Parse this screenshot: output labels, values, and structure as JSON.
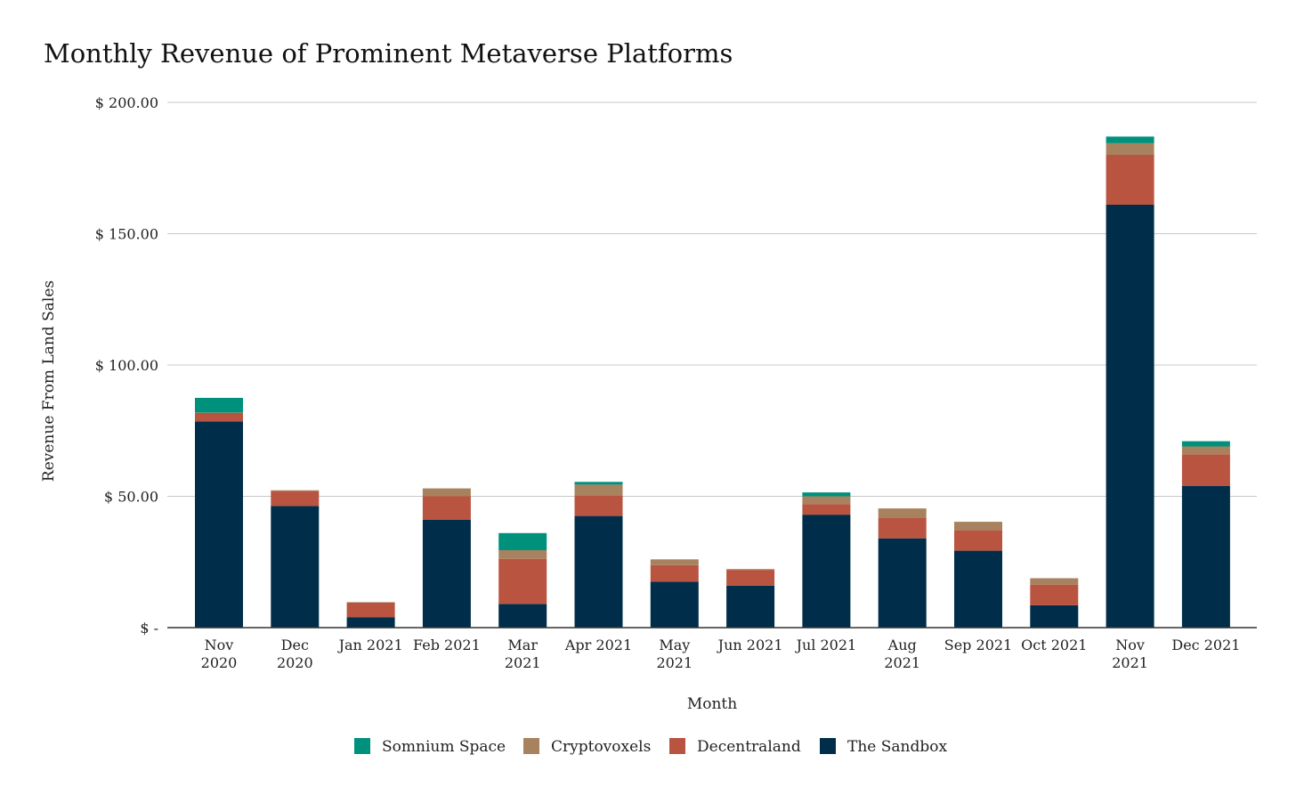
{
  "chart_data": {
    "type": "bar",
    "stacked": true,
    "title": "Monthly Revenue of Prominent Metaverse Platforms",
    "xlabel": "Month",
    "ylabel": "Revenue From Land Sales",
    "ylim": [
      0,
      200
    ],
    "yticks": [
      {
        "value": 0,
        "label": "$ -"
      },
      {
        "value": 50,
        "label": "$ 50.00"
      },
      {
        "value": 100,
        "label": "$ 100.00"
      },
      {
        "value": 150,
        "label": "$ 150.00"
      },
      {
        "value": 200,
        "label": "$ 200.00"
      }
    ],
    "categories": [
      [
        "Nov",
        "2020"
      ],
      [
        "Dec",
        "2020"
      ],
      [
        "Jan 2021"
      ],
      [
        "Feb 2021"
      ],
      [
        "Mar",
        "2021"
      ],
      [
        "Apr 2021"
      ],
      [
        "May",
        "2021"
      ],
      [
        "Jun 2021"
      ],
      [
        "Jul 2021"
      ],
      [
        "Aug",
        "2021"
      ],
      [
        "Sep 2021"
      ],
      [
        "Oct 2021"
      ],
      [
        "Nov",
        "2021"
      ],
      [
        "Dec 2021"
      ]
    ],
    "series": [
      {
        "name": "The Sandbox",
        "color": "#002e4a",
        "values": [
          78.5,
          46.3,
          4.0,
          41.0,
          9.0,
          42.5,
          17.5,
          16.0,
          43.0,
          34.0,
          29.3,
          8.5,
          161.0,
          54.0
        ]
      },
      {
        "name": "Decentraland",
        "color": "#b95441",
        "values": [
          3.2,
          5.7,
          5.5,
          9.0,
          17.2,
          7.8,
          6.3,
          6.0,
          4.0,
          7.7,
          7.8,
          7.8,
          19.0,
          12.0
        ]
      },
      {
        "name": "Cryptovoxels",
        "color": "#a8825f",
        "values": [
          0.2,
          0.3,
          0.2,
          3.0,
          3.3,
          4.2,
          2.2,
          0.3,
          3.0,
          3.7,
          3.2,
          2.5,
          4.5,
          3.0
        ]
      },
      {
        "name": "Somnium Space",
        "color": "#00917d",
        "values": [
          5.6,
          0.0,
          0.0,
          0.0,
          6.5,
          1.0,
          0.0,
          0.0,
          1.5,
          0.0,
          0.0,
          0.0,
          2.5,
          2.0
        ]
      }
    ],
    "legend": {
      "position": "bottom",
      "order": [
        "Somnium Space",
        "Cryptovoxels",
        "Decentraland",
        "The Sandbox"
      ]
    },
    "grid": true
  }
}
